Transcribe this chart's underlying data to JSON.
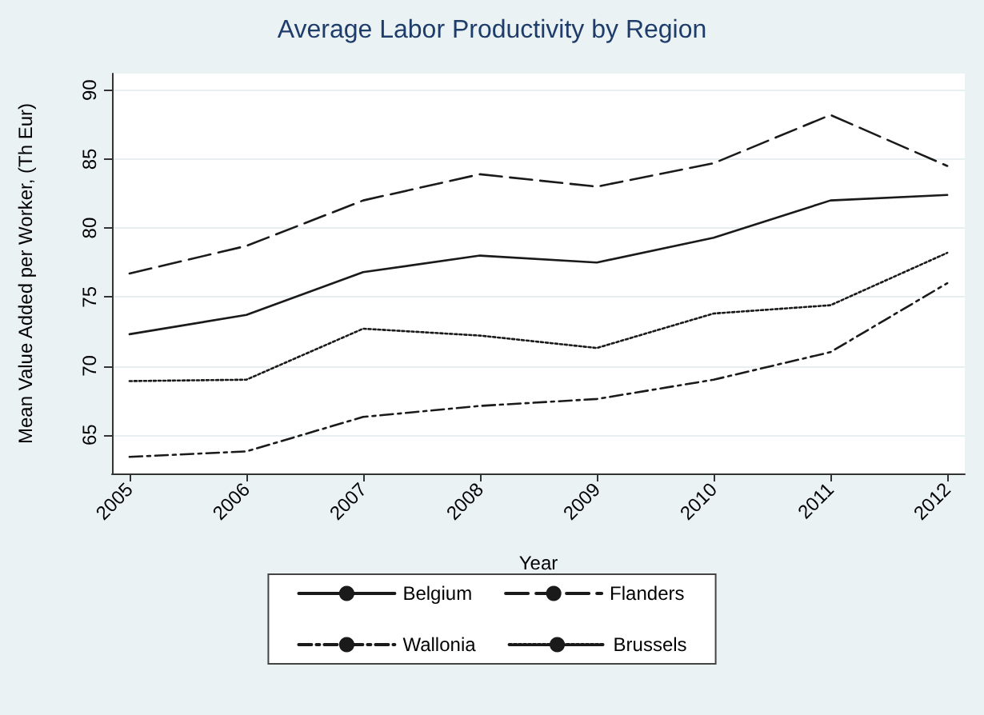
{
  "chart_data": {
    "type": "line",
    "title": "Average Labor Productivity by Region",
    "xlabel": "Year",
    "ylabel": "Mean Value Added per Worker, (Th Eur)",
    "x": [
      2005,
      2006,
      2007,
      2008,
      2009,
      2010,
      2011,
      2012
    ],
    "series": [
      {
        "name": "Belgium",
        "color": "#1a1a1a",
        "line_style": "solid",
        "values": [
          72.3,
          73.7,
          76.8,
          78.0,
          77.5,
          79.3,
          82.0,
          82.4
        ]
      },
      {
        "name": "Flanders",
        "color": "#1a1a1a",
        "line_style": "longdash",
        "values": [
          76.7,
          78.7,
          82.0,
          83.9,
          83.0,
          84.7,
          88.2,
          84.5
        ]
      },
      {
        "name": "Wallonia",
        "color": "#1a1a1a",
        "line_style": "dashdot",
        "values": [
          63.4,
          63.8,
          66.3,
          67.1,
          67.6,
          69.0,
          71.0,
          76.0
        ]
      },
      {
        "name": "Brussels",
        "color": "#1a1a1a",
        "line_style": "dotted",
        "values": [
          68.9,
          69.0,
          72.7,
          72.2,
          71.3,
          73.8,
          74.4,
          78.2
        ]
      }
    ],
    "xlim": [
      2004.85,
      2012.15
    ],
    "xticks": [
      2005,
      2006,
      2007,
      2008,
      2009,
      2010,
      2011,
      2012
    ],
    "ylim": [
      62.2,
      91.2
    ],
    "yticks": [
      65,
      70,
      75,
      80,
      85,
      90
    ],
    "grid": "y",
    "legend": "bottom",
    "marker": "none"
  }
}
